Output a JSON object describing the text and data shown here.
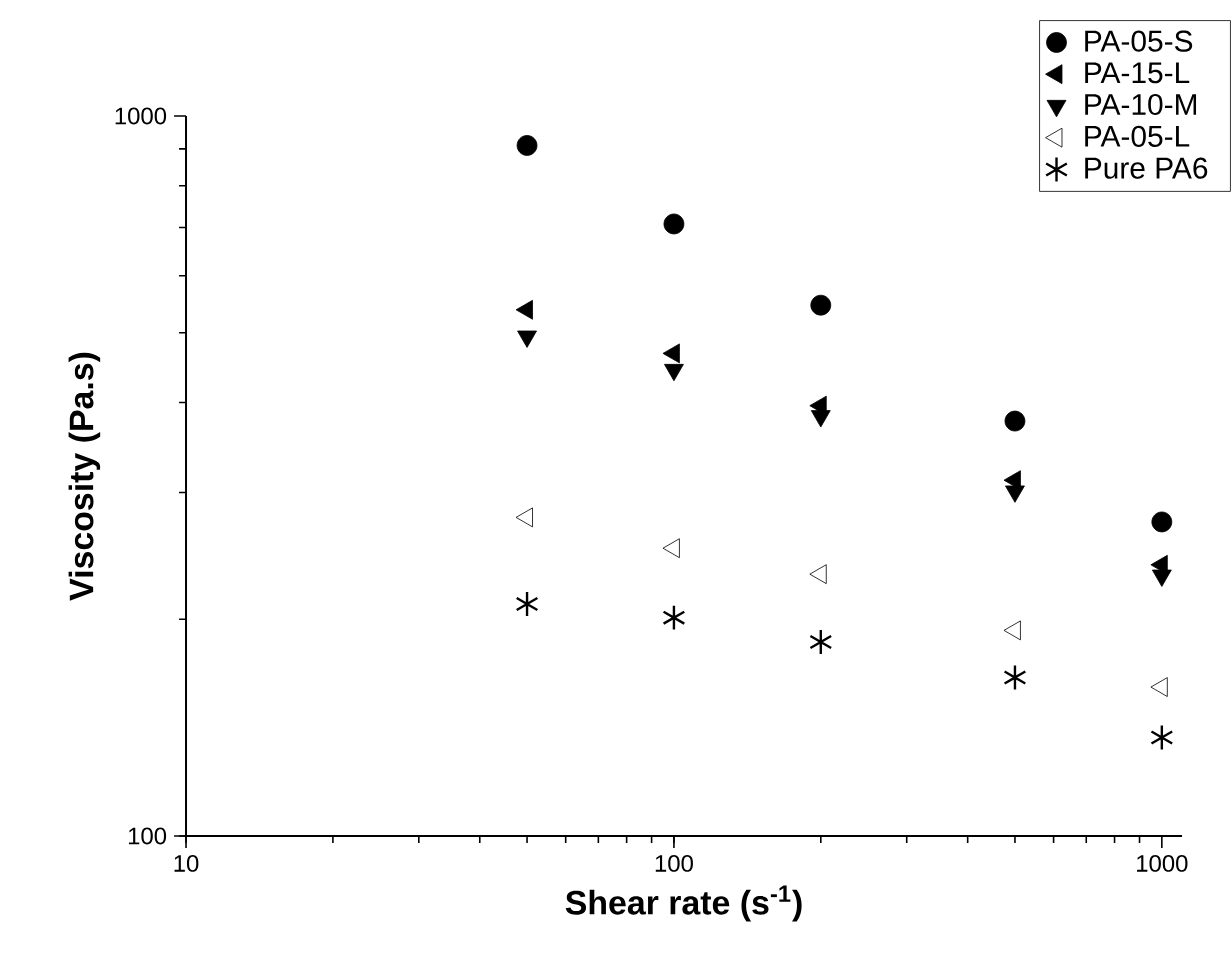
{
  "chart_data": {
    "type": "scatter",
    "xlabel": "Shear rate (s$^{-1}$)",
    "ylabel": "Viscosity (Pa.s)",
    "log": "xy",
    "xlim": [
      10,
      1100
    ],
    "ylim": [
      100,
      1000
    ],
    "xticks": [
      10,
      100,
      1000
    ],
    "yticks": [
      100,
      1000
    ],
    "grid": false,
    "legend": "top right",
    "x": [
      50,
      100,
      200,
      500,
      1000
    ],
    "series": [
      {
        "name": "PA-05-S",
        "color": "#000000",
        "marker": "circle",
        "values": [
          910,
          708,
          546,
          377,
          273
        ]
      },
      {
        "name": "PA-15-L",
        "color": "#000000",
        "marker": "triangle-left",
        "values": [
          538,
          468,
          396,
          312,
          238
        ]
      },
      {
        "name": "PA-10-M",
        "color": "#000000",
        "marker": "triangle-down",
        "values": [
          494,
          444,
          383,
          301,
          230
        ]
      },
      {
        "name": "PA-05-L",
        "color": "#000000",
        "marker": "triangle-left-open",
        "values": [
          277,
          251,
          231,
          193,
          161
        ]
      },
      {
        "name": "Pure PA6",
        "color": "#000000",
        "marker": "cross",
        "values": [
          210,
          201,
          186,
          166,
          137
        ]
      }
    ]
  }
}
